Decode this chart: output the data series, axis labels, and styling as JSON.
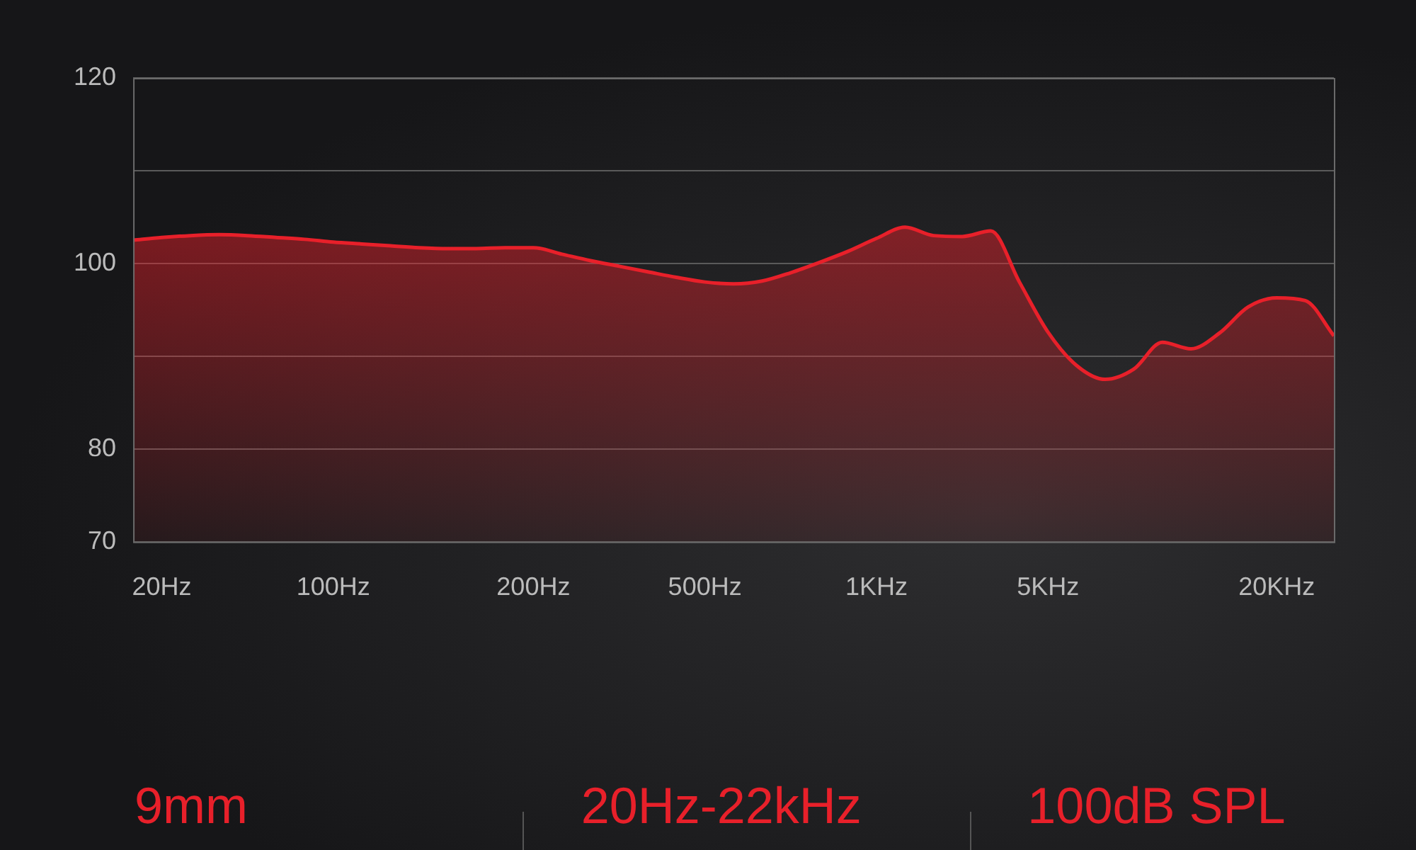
{
  "chart_data": {
    "type": "area",
    "categories": [
      null,
      "20Hz",
      null,
      null,
      null,
      null,
      null,
      "100Hz",
      null,
      null,
      null,
      null,
      null,
      null,
      "200Hz",
      null,
      null,
      null,
      null,
      null,
      "500Hz",
      null,
      null,
      null,
      null,
      null,
      "1KHz",
      null,
      null,
      null,
      null,
      null,
      "5KHz",
      null,
      null,
      null,
      null,
      null,
      null,
      null,
      "20KHz",
      null,
      null
    ],
    "values": [
      102.5,
      102.8,
      103,
      103.1,
      103,
      102.8,
      102.6,
      102.3,
      102.1,
      101.9,
      101.7,
      101.6,
      101.6,
      101.7,
      101.7,
      101,
      100.3,
      99.7,
      99.1,
      98.5,
      98,
      97.8,
      98.1,
      99,
      100.1,
      101.3,
      102.7,
      103.9,
      103,
      102.9,
      103.5,
      98,
      92.6,
      89,
      87.5,
      88.6,
      91.5,
      90.8,
      92.5,
      95.3,
      96.3,
      96,
      92.2
    ],
    "color": "#e8202a",
    "ylim": [
      70,
      120
    ],
    "yticks": [
      70,
      80,
      {
        "value": 90,
        "label": null
      },
      100,
      {
        "value": 110,
        "label": null
      },
      120
    ],
    "grid": "y",
    "marker": "none",
    "annotations": [
      "9mm",
      "20Hz-22kHz",
      "100dB SPL"
    ]
  }
}
